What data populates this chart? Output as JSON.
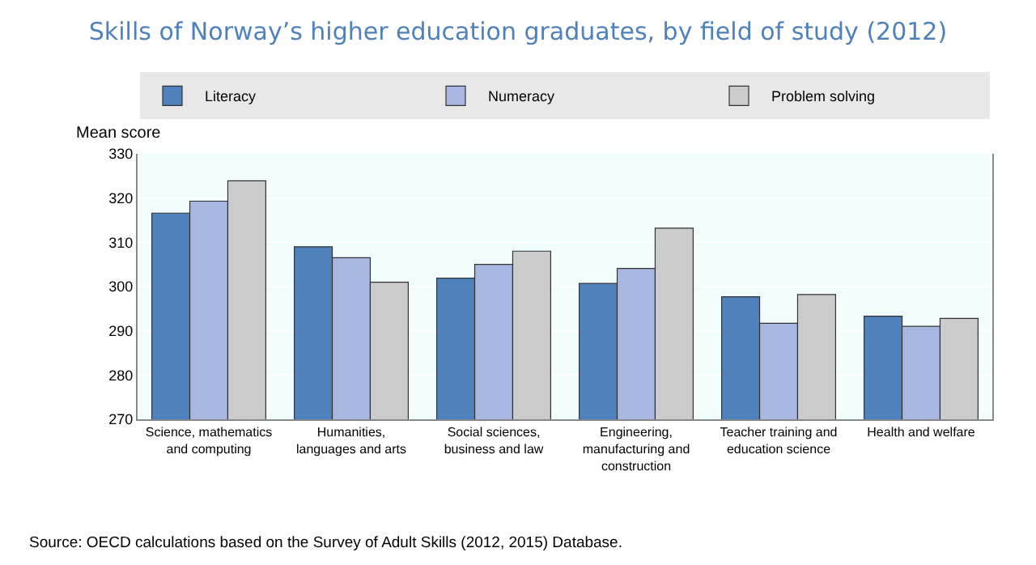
{
  "chart_data": {
    "type": "bar",
    "title": "Skills of Norway’s higher education graduates, by field of study (2012)",
    "ylabel": "Mean score",
    "categories": [
      "Science, mathematics and computing",
      "Humanities, languages and arts",
      "Social sciences, business and law",
      "Engineering, manufacturing and construction",
      "Teacher training and education science",
      "Health and welfare"
    ],
    "series": [
      {
        "name": "Literacy",
        "color": "#4f81bd",
        "values": [
          316.6,
          309.0,
          301.9,
          300.7,
          297.7,
          293.3
        ]
      },
      {
        "name": "Numeracy",
        "color": "#a9b8e2",
        "values": [
          319.3,
          306.5,
          305.0,
          304.1,
          291.7,
          291.0
        ]
      },
      {
        "name": "Problem solving",
        "color": "#cccccc",
        "values": [
          323.9,
          301.0,
          308.0,
          313.2,
          298.2,
          292.8
        ]
      }
    ],
    "ylim": [
      270,
      330
    ],
    "yticks": [
      270,
      280,
      290,
      300,
      310,
      320,
      330
    ],
    "grid": "y",
    "legend": "top",
    "annotations": [
      "Source: OECD calculations based on the Survey of Adult Skills (2012, 2015) Database."
    ]
  }
}
